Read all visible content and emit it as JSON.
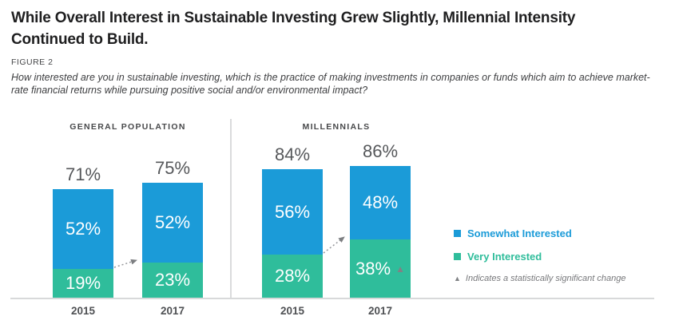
{
  "header": {
    "title_line1": "While Overall Interest in Sustainable Investing Grew Slightly, Millennial Intensity",
    "title_line2": "Continued to Build.",
    "figure_label": "FIGURE 2",
    "question_line1": "How interested are you in sustainable investing, which is the practice of making investments in companies or funds which aim to achieve market-",
    "question_line2": "rate financial returns while pursuing positive social and/or environmental impact?"
  },
  "legend": {
    "somewhat": "Somewhat Interested",
    "very": "Very Interested",
    "significance_note": "Indicates a statistically significant change"
  },
  "colors": {
    "somewhat_blue": "#1b9bd8",
    "very_green": "#2fbd9b",
    "total_label_gray": "#55575a",
    "significance_gray": "#808285",
    "axis_gray": "#d8d9da",
    "arrow_gray": "#94969a"
  },
  "chart_data": {
    "type": "bar",
    "stacked": true,
    "unit": "%",
    "significance_marker": "▲",
    "series": [
      {
        "name": "Somewhat Interested",
        "color": "#1b9bd8"
      },
      {
        "name": "Very Interested",
        "color": "#2fbd9b"
      }
    ],
    "groups": [
      {
        "label": "GENERAL POPULATION",
        "bars": [
          {
            "year": "2015",
            "total": 71,
            "somewhat_interested": 52,
            "very_interested": 19,
            "statistically_significant": false
          },
          {
            "year": "2017",
            "total": 75,
            "somewhat_interested": 52,
            "very_interested": 23,
            "statistically_significant": false
          }
        ]
      },
      {
        "label": "MILLENNIALS",
        "bars": [
          {
            "year": "2015",
            "total": 84,
            "somewhat_interested": 56,
            "very_interested": 28,
            "statistically_significant": false
          },
          {
            "year": "2017",
            "total": 86,
            "somewhat_interested": 48,
            "very_interested": 38,
            "statistically_significant": true
          }
        ]
      }
    ]
  }
}
